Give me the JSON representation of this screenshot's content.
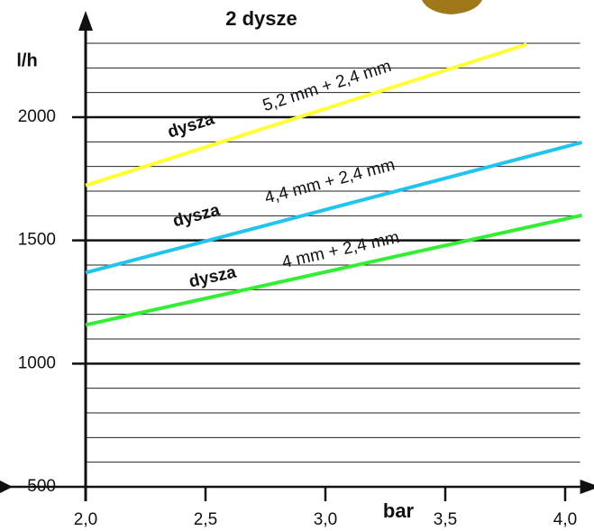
{
  "chart_data": {
    "type": "line",
    "title": "2 dysze",
    "y_label": "l/h",
    "x_label": "bar",
    "xlim": [
      2.0,
      4.1
    ],
    "ylim": [
      500,
      2300
    ],
    "xticks": [
      {
        "value": 2.0,
        "label": "2,0"
      },
      {
        "value": 2.5,
        "label": "2,5"
      },
      {
        "value": 3.0,
        "label": "3,0"
      },
      {
        "value": 3.5,
        "label": "3,5"
      },
      {
        "value": 4.0,
        "label": "4,0"
      }
    ],
    "yticks": [
      500,
      1000,
      1500,
      2000
    ],
    "minor_yticks": [
      600,
      700,
      800,
      900,
      1100,
      1200,
      1300,
      1400,
      1600,
      1700,
      1800,
      1900,
      2100,
      2200,
      2300
    ],
    "grid": true,
    "series": [
      {
        "label_prefix": "dysza",
        "name": "5,2 mm +  2,4 mm",
        "color": "#ffff33",
        "x": [
          2.0,
          3.84
        ],
        "values": [
          1723,
          2296
        ]
      },
      {
        "label_prefix": "dysza",
        "name": "4,4 mm + 2,4 mm",
        "color": "#22c4ee",
        "x": [
          2.0,
          4.07
        ],
        "values": [
          1369,
          1898
        ]
      },
      {
        "label_prefix": "dysza",
        "name": "4 mm + 2,4 mm",
        "color": "#33ee33",
        "x": [
          2.0,
          4.07
        ],
        "values": [
          1157,
          1602
        ]
      }
    ]
  }
}
